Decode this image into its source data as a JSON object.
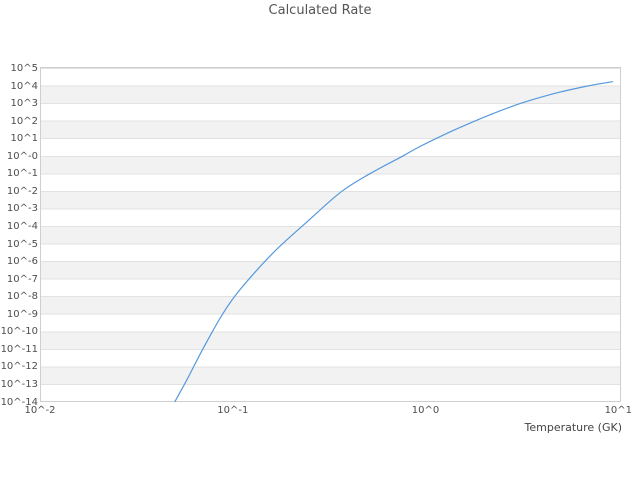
{
  "colors": {
    "line": "#5599dd",
    "band": "#f2f2f2",
    "gridline": "#e2e2e2",
    "plot_border": "#cfcfcf",
    "title_text": "#555555",
    "tick_text": "#4d4d4d"
  },
  "chart_data": {
    "type": "line",
    "title": "Calculated Rate",
    "xlabel": "Temperature (GK)",
    "ylabel": "",
    "x_scale": "log10",
    "y_scale": "log10",
    "xlim_log10": [
      -2,
      1.014
    ],
    "ylim_log10": [
      -14,
      5.085
    ],
    "grid": "horizontal-bands-only",
    "legend": "none",
    "x_tick_labels": [
      "10^-2",
      "10^-1",
      "10^0",
      "10^1"
    ],
    "x_tick_log10": [
      -2,
      -1,
      0,
      1
    ],
    "y_tick_labels": [
      "10^5",
      "10^4",
      "10^3",
      "10^2",
      "10^1",
      "10^-0",
      "10^-1",
      "10^-2",
      "10^-3",
      "10^-4",
      "10^-5",
      "10^-6",
      "10^-7",
      "10^-8",
      "10^-9",
      "10^-10",
      "10^-11",
      "10^-12",
      "10^-13",
      "10^-14"
    ],
    "y_tick_log10": [
      5,
      4,
      3,
      2,
      1,
      0,
      -1,
      -2,
      -3,
      -4,
      -5,
      -6,
      -7,
      -8,
      -9,
      -10,
      -11,
      -12,
      -13,
      -14
    ],
    "series": [
      {
        "name": "Calculated Rate",
        "color": "#5599dd",
        "points_t_gk_vs_log10_rate": [
          [
            0.05,
            -14.0
          ],
          [
            0.058,
            -12.7
          ],
          [
            0.071,
            -10.85
          ],
          [
            0.089,
            -8.95
          ],
          [
            0.11,
            -7.55
          ],
          [
            0.162,
            -5.5
          ],
          [
            0.245,
            -3.7
          ],
          [
            0.363,
            -2.05
          ],
          [
            0.513,
            -1.0
          ],
          [
            0.759,
            0.0
          ],
          [
            0.933,
            0.55
          ],
          [
            1.38,
            1.45
          ],
          [
            2.09,
            2.3
          ],
          [
            3.09,
            3.0
          ],
          [
            4.57,
            3.55
          ],
          [
            6.92,
            4.0
          ],
          [
            9.33,
            4.25
          ]
        ]
      }
    ]
  }
}
